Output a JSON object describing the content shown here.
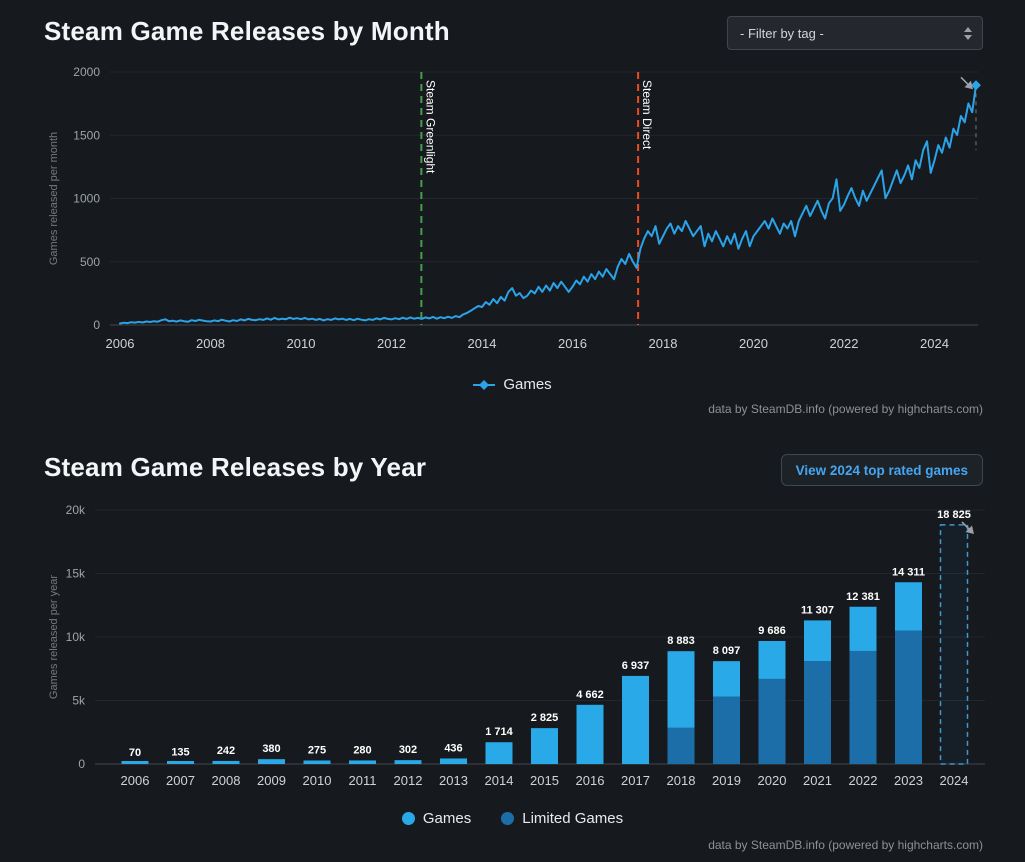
{
  "colors": {
    "background": "#16191d",
    "line_series": "#2aa3e8",
    "bar_games": "#2aa9e8",
    "bar_limited": "#1c6ea9",
    "greenlight_line": "#45a049",
    "direct_line": "#ee4a23",
    "projected_outline": "#3f97cf"
  },
  "icons": {
    "filter_select_arrows": "up-down-triangles-icon",
    "projection_arrow": "diagonal-arrow-icon",
    "games_series_marker": "line-with-diamond-marker"
  },
  "monthly_chart": {
    "title": "Steam Game Releases by Month",
    "filter_placeholder": "- Filter by tag -",
    "legend_games": "Games",
    "credit": "data by SteamDB.info (powered by highcharts.com)"
  },
  "yearly_chart": {
    "title": "Steam Game Releases by Year",
    "button_label": "View 2024 top rated games",
    "legend_games": "Games",
    "legend_limited": "Limited Games",
    "credit": "data by SteamDB.info (powered by highcharts.com)"
  },
  "chart_data": [
    {
      "type": "line",
      "title": "Steam Game Releases by Month",
      "ylabel": "Games released per month",
      "xlabel": "",
      "ylim": [
        0,
        2000
      ],
      "ytick_values": [
        0,
        500,
        1000,
        1500,
        2000
      ],
      "ytick_labels": [
        "0",
        "500",
        "1000",
        "1500",
        "2000"
      ],
      "xticks": [
        2006,
        2008,
        2010,
        2012,
        2014,
        2016,
        2018,
        2020,
        2022,
        2024
      ],
      "x_start_year": 2006,
      "points_per_year": 12,
      "grid": true,
      "legend_position": "bottom",
      "plotlines": [
        {
          "name": "steam-greenlight-plotline",
          "label": "Steam Greenlight",
          "x": 2012.66,
          "color": "#45a049"
        },
        {
          "name": "steam-direct-plotline",
          "label": "Steam Direct",
          "x": 2017.45,
          "color": "#ee4a23"
        }
      ],
      "series": [
        {
          "name": "Games",
          "color": "#2aa3e8",
          "values": [
            12,
            18,
            15,
            22,
            19,
            25,
            20,
            28,
            24,
            30,
            26,
            38,
            45,
            30,
            34,
            27,
            36,
            30,
            25,
            38,
            32,
            41,
            35,
            30,
            28,
            36,
            30,
            42,
            34,
            28,
            38,
            32,
            44,
            36,
            48,
            40,
            38,
            46,
            40,
            52,
            42,
            56,
            44,
            50,
            46,
            58,
            48,
            54,
            46,
            56,
            44,
            50,
            40,
            48,
            36,
            46,
            40,
            52,
            44,
            50,
            40,
            48,
            38,
            50,
            42,
            36,
            46,
            40,
            52,
            44,
            56,
            48,
            44,
            54,
            46,
            58,
            48,
            60,
            50,
            56,
            48,
            60,
            52,
            64,
            50,
            62,
            54,
            66,
            56,
            70,
            62,
            84,
            95,
            112,
            132,
            150,
            142,
            182,
            160,
            205,
            172,
            222,
            192,
            262,
            292,
            232,
            252,
            212,
            232,
            272,
            250,
            302,
            262,
            312,
            272,
            332,
            292,
            342,
            302,
            262,
            302,
            352,
            322,
            382,
            342,
            402,
            362,
            422,
            382,
            442,
            402,
            362,
            462,
            522,
            482,
            562,
            502,
            452,
            602,
            682,
            742,
            702,
            782,
            642,
            702,
            762,
            802,
            722,
            782,
            742,
            822,
            762,
            702,
            742,
            782,
            622,
            722,
            662,
            742,
            682,
            622,
            702,
            642,
            722,
            602,
            682,
            742,
            622,
            702,
            742,
            782,
            822,
            762,
            842,
            782,
            722,
            802,
            762,
            822,
            702,
            822,
            882,
            942,
            862,
            922,
            982,
            902,
            842,
            962,
            1002,
            1152,
            902,
            952,
            1022,
            1082,
            1002,
            942,
            1062,
            982,
            1042,
            1102,
            1162,
            1222,
            1002,
            1062,
            1142,
            1222,
            1122,
            1182,
            1262,
            1152,
            1302,
            1242,
            1382,
            1452,
            1202,
            1302,
            1422,
            1362,
            1482,
            1402,
            1552,
            1502,
            1652,
            1602,
            1752,
            1682,
            1895
          ]
        }
      ]
    },
    {
      "type": "bar",
      "stacked": true,
      "title": "Steam Game Releases by Year",
      "ylabel": "Games released per year",
      "xlabel": "",
      "ylim": [
        0,
        20000
      ],
      "ytick_values": [
        0,
        5000,
        10000,
        15000,
        20000
      ],
      "ytick_labels": [
        "0",
        "5k",
        "10k",
        "15k",
        "20k"
      ],
      "grid": true,
      "legend_position": "bottom",
      "categories": [
        2006,
        2007,
        2008,
        2009,
        2010,
        2011,
        2012,
        2013,
        2014,
        2015,
        2016,
        2017,
        2018,
        2019,
        2020,
        2021,
        2022,
        2023,
        2024
      ],
      "totals": [
        70,
        135,
        242,
        380,
        275,
        280,
        302,
        436,
        1714,
        2825,
        4662,
        6937,
        8883,
        8097,
        9686,
        11307,
        12381,
        14311,
        18825
      ],
      "value_labels": [
        "70",
        "135",
        "242",
        "380",
        "275",
        "280",
        "302",
        "436",
        "1 714",
        "2 825",
        "4 662",
        "6 937",
        "8 883",
        "8 097",
        "9 686",
        "11 307",
        "12 381",
        "14 311",
        "18 825"
      ],
      "series": [
        {
          "name": "Limited Games",
          "color": "#1c6ea9",
          "values": [
            0,
            0,
            0,
            0,
            0,
            0,
            0,
            0,
            0,
            0,
            0,
            0,
            2850,
            5300,
            6700,
            8100,
            8900,
            10500,
            0
          ]
        },
        {
          "name": "Games",
          "color": "#2aa9e8",
          "values": [
            70,
            135,
            242,
            380,
            275,
            280,
            302,
            436,
            1714,
            2825,
            4662,
            6937,
            6033,
            2797,
            2986,
            3207,
            3481,
            3811,
            18825
          ]
        }
      ],
      "projected": {
        "year": 2024,
        "total": 18825,
        "label": "18 825",
        "style": "dashed-outline"
      },
      "legend": [
        "Games",
        "Limited Games"
      ]
    }
  ]
}
